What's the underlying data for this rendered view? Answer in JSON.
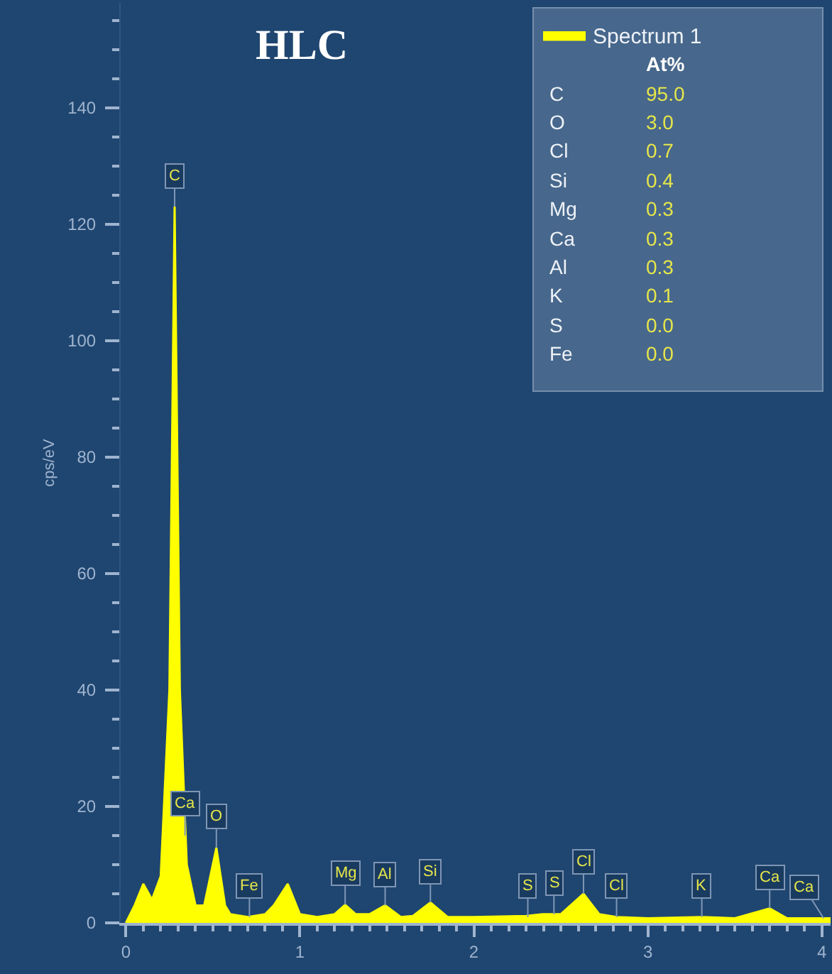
{
  "chart_data": {
    "type": "area",
    "title": "HLC",
    "ylabel": "cps/eV",
    "x": [
      0,
      0.05,
      0.1,
      0.15,
      0.2,
      0.25,
      0.28,
      0.31,
      0.35,
      0.4,
      0.45,
      0.52,
      0.57,
      0.6,
      0.7,
      0.8,
      0.85,
      0.93,
      1.0,
      1.1,
      1.2,
      1.26,
      1.32,
      1.4,
      1.49,
      1.58,
      1.65,
      1.75,
      1.85,
      2.0,
      2.3,
      2.4,
      2.5,
      2.63,
      2.72,
      2.82,
      3.0,
      3.31,
      3.5,
      3.7,
      3.8,
      4.05
    ],
    "series": [
      {
        "name": "Spectrum 1",
        "color": "#ffff00",
        "values": [
          0,
          3,
          6.7,
          4,
          8,
          40,
          123,
          40,
          10,
          3,
          3,
          12.9,
          3,
          1.5,
          1,
          1.5,
          3,
          6.7,
          1.5,
          1,
          1.5,
          3.1,
          1.5,
          1.5,
          3,
          1,
          1.2,
          3.5,
          1,
          1,
          1.2,
          1.5,
          1.5,
          5,
          1.5,
          1,
          0.8,
          1,
          0.8,
          2.5,
          0.8,
          0.8
        ]
      }
    ],
    "xlim": [
      -0.03,
      4.05
    ],
    "xticks": [
      0,
      1,
      2,
      3,
      4
    ],
    "ylim": [
      0,
      158
    ],
    "yticks": [
      0,
      20,
      40,
      60,
      80,
      100,
      120,
      140
    ],
    "grid": false,
    "legend": "top right",
    "annotations": [
      {
        "text": "C",
        "x": 0.28,
        "y": 123
      },
      {
        "text": "Ca",
        "x": 0.34,
        "y": 15
      },
      {
        "text": "O",
        "x": 0.52,
        "y": 12.9
      },
      {
        "text": "Fe",
        "x": 0.71,
        "y": 1
      },
      {
        "text": "Mg",
        "x": 1.26,
        "y": 3.1
      },
      {
        "text": "Al",
        "x": 1.49,
        "y": 3
      },
      {
        "text": "Si",
        "x": 1.75,
        "y": 3.5
      },
      {
        "text": "S",
        "x": 2.31,
        "y": 1
      },
      {
        "text": "S",
        "x": 2.46,
        "y": 1.5
      },
      {
        "text": "Cl",
        "x": 2.63,
        "y": 5
      },
      {
        "text": "Cl",
        "x": 2.82,
        "y": 1
      },
      {
        "text": "K",
        "x": 3.31,
        "y": 1
      },
      {
        "text": "Ca",
        "x": 3.7,
        "y": 2.5
      },
      {
        "text": "Ca",
        "x": 4.01,
        "y": 0.8
      },
      "At%",
      "C",
      "95.0",
      "O",
      "3.0",
      "Cl",
      "0.7",
      "Si",
      "0.4",
      "Mg",
      "0.3",
      "Ca",
      "0.3",
      "Al",
      "0.3",
      "K",
      "0.1",
      "S",
      "0.0",
      "Fe",
      "0.0"
    ]
  }
}
